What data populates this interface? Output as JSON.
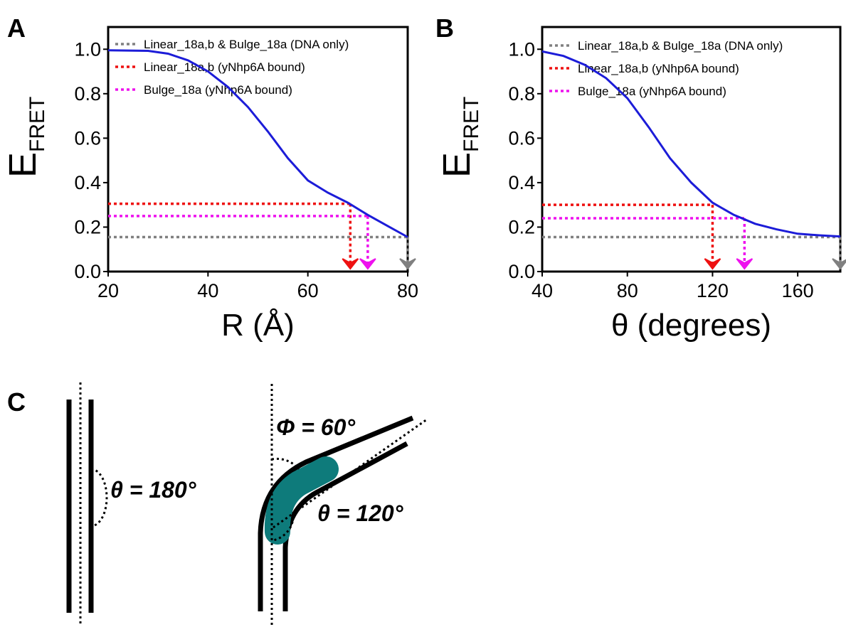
{
  "panel_labels": [
    "A",
    "B",
    "C"
  ],
  "chart_data": [
    {
      "type": "line",
      "xlabel": "R (Å)",
      "ylabel": "E",
      "ylabel_sub": "FRET",
      "xlim": [
        20,
        80
      ],
      "ylim": [
        0,
        1.1
      ],
      "xticks": [
        20,
        40,
        60,
        80
      ],
      "yticks": [
        {
          "value": 0,
          "label": "0.0"
        },
        {
          "value": 0.2,
          "label": "0.2"
        },
        {
          "value": 0.4,
          "label": "0.4"
        },
        {
          "value": 0.6,
          "label": "0.6"
        },
        {
          "value": 0.8,
          "label": "0.8"
        },
        {
          "value": 1,
          "label": "1.0"
        }
      ],
      "curve": {
        "color": "#1c1cd8",
        "x": [
          20,
          28,
          32,
          36,
          40,
          44,
          48,
          52,
          56,
          60,
          64,
          68,
          72,
          76,
          80
        ],
        "values": [
          0.995,
          0.993,
          0.98,
          0.95,
          0.9,
          0.83,
          0.74,
          0.63,
          0.51,
          0.41,
          0.355,
          0.31,
          0.255,
          0.205,
          0.155
        ]
      },
      "series": [
        {
          "name": "Linear_18a,b & Bulge_18a (DNA only)",
          "color": "#808080",
          "x": 80,
          "y": 0.155
        },
        {
          "name": "Linear_18a,b (yNhp6A bound)",
          "color": "#ee1111",
          "x": 68.5,
          "y": 0.305
        },
        {
          "name": "Bulge_18a (yNhp6A bound)",
          "color": "#ee11ee",
          "x": 72,
          "y": 0.25
        }
      ]
    },
    {
      "type": "line",
      "xlabel": "θ (degrees)",
      "ylabel": "E",
      "ylabel_sub": "FRET",
      "xlim": [
        40,
        180
      ],
      "ylim": [
        0,
        1.1
      ],
      "xticks": [
        40,
        80,
        120,
        160
      ],
      "yticks": [
        {
          "value": 0,
          "label": "0.0"
        },
        {
          "value": 0.2,
          "label": "0.2"
        },
        {
          "value": 0.4,
          "label": "0.4"
        },
        {
          "value": 0.6,
          "label": "0.6"
        },
        {
          "value": 0.8,
          "label": "0.8"
        },
        {
          "value": 1,
          "label": "1.0"
        }
      ],
      "curve": {
        "color": "#1c1cd8",
        "x": [
          40,
          50,
          60,
          70,
          80,
          90,
          100,
          110,
          120,
          130,
          140,
          150,
          160,
          170,
          180
        ],
        "values": [
          0.99,
          0.97,
          0.93,
          0.87,
          0.78,
          0.65,
          0.51,
          0.4,
          0.31,
          0.255,
          0.215,
          0.19,
          0.17,
          0.163,
          0.158
        ]
      },
      "series": [
        {
          "name": "Linear_18a,b & Bulge_18a (DNA only)",
          "color": "#808080",
          "x": 180,
          "y": 0.155
        },
        {
          "name": "Linear_18a,b (yNhp6A bound)",
          "color": "#ee1111",
          "x": 120,
          "y": 0.3
        },
        {
          "name": "Bulge_18a (yNhp6A bound)",
          "color": "#ee11ee",
          "x": 135,
          "y": 0.24
        }
      ]
    }
  ],
  "diagram": {
    "straight_angle": "θ = 180°",
    "bend_angle": "Φ = 60°",
    "bent_angle": "θ = 120°"
  }
}
